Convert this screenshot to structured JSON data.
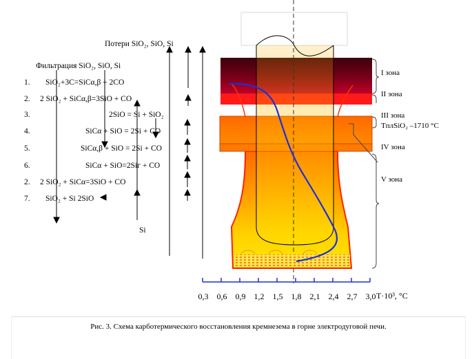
{
  "header": {
    "losses": "Потери SiO₂,    SiO,    Si",
    "filtration": "Фильтрация SiO₂,    SiO,    Si"
  },
  "reactions": [
    {
      "num": "1.",
      "text": "SiO₂+3C=SiCα,β          +    2CO"
    },
    {
      "num": "2.",
      "text": "2 SiO₂  +   SiCα,β=3SiO     +     CO"
    },
    {
      "num": "3.",
      "text": "2SiO = Si  +    SiO₂"
    },
    {
      "num": "4.",
      "text": "SiCα + SiO = 2Si + CO"
    },
    {
      "num": "5.",
      "text": "SiCα,β + SiO = 2Si + CO"
    },
    {
      "num": "6.",
      "text": "SiCα + SiO=2Siг + CO"
    },
    {
      "num": "2.",
      "text": "2 SiO₂  +    SiCα=3SiO     +      CO"
    },
    {
      "num": "7.",
      "text": "SiO₂ +  Si      2SiO"
    }
  ],
  "si_label": "Si",
  "zones": {
    "z1": "I зона",
    "z2": "II зона",
    "z3": "III зона",
    "tpl": "TплSiO₂ –1710 °C",
    "z4": "IV зона",
    "z5": "V зона"
  },
  "axis": {
    "ticks": [
      "0,3",
      "0,6",
      "0,9",
      "1,2",
      "1,5",
      "1,8",
      "2,1",
      "2,4",
      "2,7",
      "3,0"
    ],
    "label": "T·10³, °C"
  },
  "caption": "Рис. 3. Схема карботермического восстановления кремнезема в горне электродуговой печи.",
  "colors": {
    "axis": "#1f2fd8",
    "curve": "#1b2fe0",
    "furnace_edge": "#ff2000",
    "zone1": "#4a0010"
  }
}
